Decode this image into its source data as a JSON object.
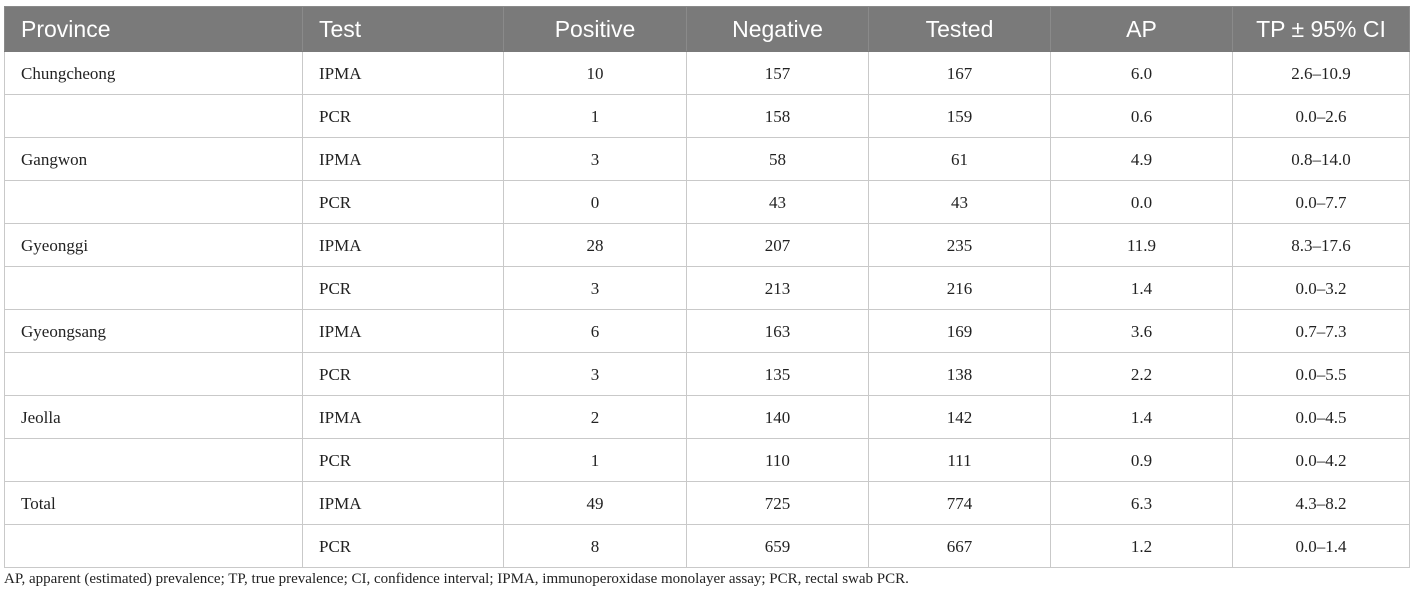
{
  "table": {
    "headers": [
      "Province",
      "Test",
      "Positive",
      "Negative",
      "Tested",
      "AP",
      "TP ± 95% CI"
    ],
    "rows": [
      [
        "Chungcheong",
        "IPMA",
        "10",
        "157",
        "167",
        "6.0",
        "2.6–10.9"
      ],
      [
        "",
        "PCR",
        "1",
        "158",
        "159",
        "0.6",
        "0.0–2.6"
      ],
      [
        "Gangwon",
        "IPMA",
        "3",
        "58",
        "61",
        "4.9",
        "0.8–14.0"
      ],
      [
        "",
        "PCR",
        "0",
        "43",
        "43",
        "0.0",
        "0.0–7.7"
      ],
      [
        "Gyeonggi",
        "IPMA",
        "28",
        "207",
        "235",
        "11.9",
        "8.3–17.6"
      ],
      [
        "",
        "PCR",
        "3",
        "213",
        "216",
        "1.4",
        "0.0–3.2"
      ],
      [
        "Gyeongsang",
        "IPMA",
        "6",
        "163",
        "169",
        "3.6",
        "0.7–7.3"
      ],
      [
        "",
        "PCR",
        "3",
        "135",
        "138",
        "2.2",
        "0.0–5.5"
      ],
      [
        "Jeolla",
        "IPMA",
        "2",
        "140",
        "142",
        "1.4",
        "0.0–4.5"
      ],
      [
        "",
        "PCR",
        "1",
        "110",
        "111",
        "0.9",
        "0.0–4.2"
      ],
      [
        "Total",
        "IPMA",
        "49",
        "725",
        "774",
        "6.3",
        "4.3–8.2"
      ],
      [
        "",
        "PCR",
        "8",
        "659",
        "667",
        "1.2",
        "0.0–1.4"
      ]
    ]
  },
  "footnote": "AP, apparent (estimated) prevalence; TP, true prevalence; CI, confidence interval; IPMA, immunoperoxidase monolayer assay; PCR, rectal swab PCR.",
  "colors": {
    "header_background": "#7a7a7a",
    "header_text": "#ffffff",
    "grid_line": "#c9c9c9",
    "body_text": "#222222"
  }
}
